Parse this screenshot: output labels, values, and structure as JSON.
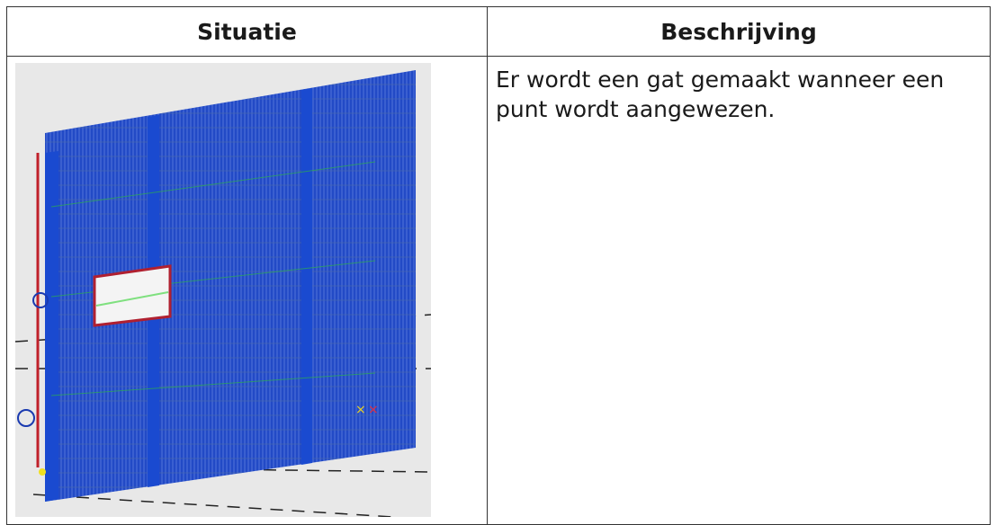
{
  "table": {
    "header": [
      "Situatie",
      "Beschrijving"
    ],
    "rows": [
      {
        "description": "Er wordt een gat gemaakt wanneer een punt wordt aangewezen."
      }
    ]
  }
}
